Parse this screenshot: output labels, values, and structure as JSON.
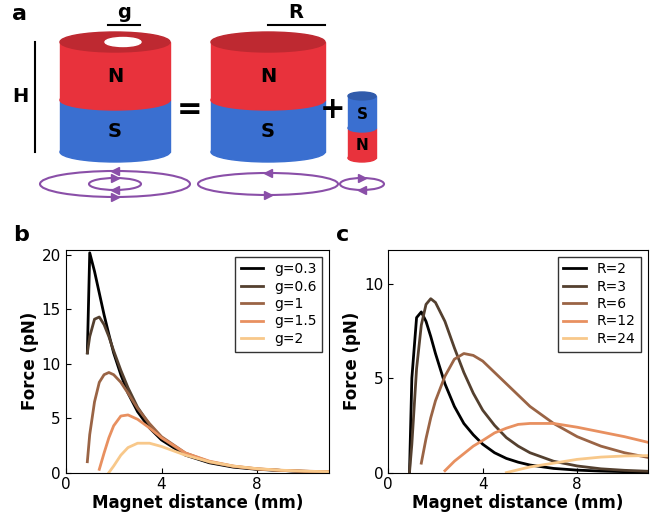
{
  "diagram": {
    "label": "a",
    "dimension_labels": [
      "g",
      "R",
      "H"
    ],
    "magnets": [
      {
        "poles": [
          {
            "label": "N",
            "color": "#e8323c"
          },
          {
            "label": "S",
            "color": "#3a6fd0"
          }
        ]
      },
      {
        "poles": [
          {
            "label": "N",
            "color": "#e8323c"
          },
          {
            "label": "S",
            "color": "#3a6fd0"
          }
        ]
      },
      {
        "poles": [
          {
            "label": "S",
            "color": "#3a6fd0"
          },
          {
            "label": "N",
            "color": "#e8323c"
          }
        ]
      }
    ],
    "operators": [
      "=",
      "+"
    ]
  },
  "chart_data": [
    {
      "type": "line",
      "title": "b",
      "xlabel": "Magnet distance (mm)",
      "ylabel": "Force (pN)",
      "x": [
        0.9,
        1.0,
        1.2,
        1.4,
        1.6,
        1.8,
        2.0,
        2.3,
        2.6,
        3,
        3.5,
        4,
        5,
        6,
        7,
        8,
        9,
        10,
        11
      ],
      "series": [
        {
          "name": "g=0.3",
          "color": "#000000",
          "values": [
            11,
            20.2,
            18.5,
            16.5,
            14.5,
            12.7,
            11.0,
            9.0,
            7.3,
            5.6,
            4.1,
            3.0,
            1.6,
            0.9,
            0.5,
            0.3,
            0.2,
            0.1,
            0.05
          ]
        },
        {
          "name": "g=0.6",
          "color": "#54402f",
          "values": [
            11,
            12.5,
            14.1,
            14.3,
            13.6,
            12.5,
            11.2,
            9.4,
            7.8,
            6.0,
            4.4,
            3.2,
            1.7,
            0.95,
            0.55,
            0.32,
            0.2,
            0.12,
            0.07
          ]
        },
        {
          "name": "g=1",
          "color": "#9a6445",
          "values": [
            1.0,
            3.5,
            6.5,
            8.3,
            9.0,
            9.2,
            9.0,
            8.3,
            7.3,
            5.9,
            4.5,
            3.3,
            1.8,
            1.0,
            0.58,
            0.34,
            0.2,
            0.12,
            0.07
          ]
        },
        {
          "name": "g=1.5",
          "color": "#e89060",
          "values": [
            null,
            null,
            null,
            0.3,
            1.8,
            3.2,
            4.3,
            5.2,
            5.3,
            4.9,
            4.1,
            3.2,
            1.8,
            1.05,
            0.6,
            0.35,
            0.21,
            0.13,
            0.08
          ]
        },
        {
          "name": "g=2",
          "color": "#f8c88a",
          "values": [
            null,
            null,
            null,
            null,
            null,
            0,
            0.6,
            1.6,
            2.3,
            2.7,
            2.7,
            2.4,
            1.6,
            1.0,
            0.6,
            0.36,
            0.22,
            0.13,
            0.08
          ]
        }
      ],
      "xlim": [
        0,
        11
      ],
      "ylim": [
        0,
        20.5
      ],
      "xticks": [
        0,
        4,
        8
      ],
      "yticks": [
        0,
        5,
        10,
        15,
        20
      ],
      "legend": "upper right"
    },
    {
      "type": "line",
      "title": "c",
      "xlabel": "Magnet distance (mm)",
      "ylabel": "Force (pN)",
      "x": [
        0.9,
        1.0,
        1.2,
        1.4,
        1.6,
        1.8,
        2.0,
        2.4,
        2.8,
        3.2,
        3.6,
        4,
        4.5,
        5,
        5.5,
        6,
        7,
        8,
        9,
        10,
        11
      ],
      "series": [
        {
          "name": "R=2",
          "color": "#000000",
          "values": [
            0,
            5,
            8.2,
            8.5,
            8.0,
            7.2,
            6.3,
            4.7,
            3.5,
            2.6,
            2.0,
            1.5,
            1.05,
            0.75,
            0.55,
            0.4,
            0.22,
            0.13,
            0.08,
            0.05,
            0.03
          ]
        },
        {
          "name": "R=3",
          "color": "#54402f",
          "values": [
            0,
            1.5,
            5.5,
            7.8,
            8.9,
            9.2,
            9.0,
            8.0,
            6.6,
            5.3,
            4.2,
            3.3,
            2.5,
            1.85,
            1.4,
            1.05,
            0.6,
            0.35,
            0.2,
            0.12,
            0.07
          ]
        },
        {
          "name": "R=6",
          "color": "#9a6445",
          "values": [
            null,
            null,
            null,
            0.5,
            1.8,
            2.9,
            3.8,
            5.1,
            6.0,
            6.3,
            6.2,
            5.9,
            5.3,
            4.7,
            4.1,
            3.5,
            2.6,
            1.9,
            1.4,
            1.05,
            0.8
          ]
        },
        {
          "name": "R=12",
          "color": "#e89060",
          "values": [
            null,
            null,
            null,
            null,
            null,
            null,
            null,
            0.1,
            0.6,
            1.0,
            1.4,
            1.7,
            2.1,
            2.35,
            2.55,
            2.6,
            2.6,
            2.4,
            2.15,
            1.9,
            1.6
          ]
        },
        {
          "name": "R=24",
          "color": "#f8c88a",
          "values": [
            null,
            null,
            null,
            null,
            null,
            null,
            null,
            null,
            null,
            null,
            null,
            null,
            null,
            0,
            0.15,
            0.3,
            0.5,
            0.7,
            0.82,
            0.88,
            0.9
          ]
        }
      ],
      "xlim": [
        0,
        11
      ],
      "ylim": [
        0,
        11.8
      ],
      "xticks": [
        0,
        4,
        8
      ],
      "yticks": [
        0,
        5,
        10
      ],
      "legend": "upper right"
    }
  ]
}
